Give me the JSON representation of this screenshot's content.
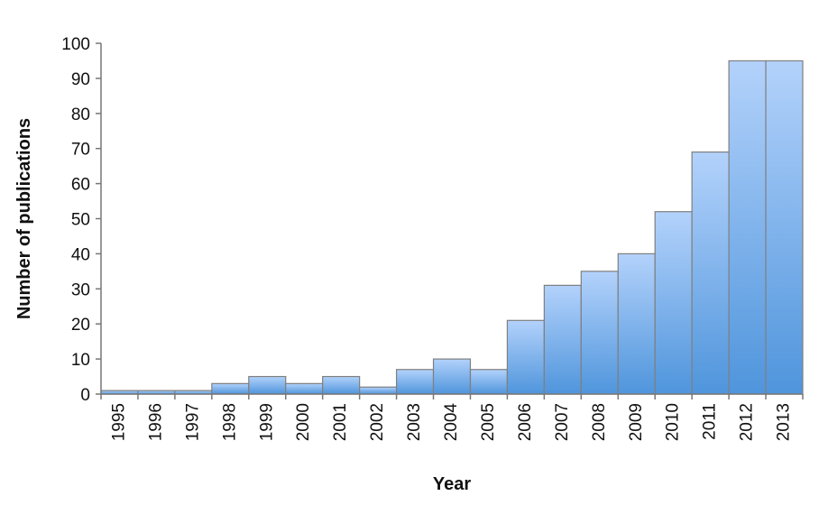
{
  "chart_data": {
    "type": "bar",
    "categories": [
      "1995",
      "1996",
      "1997",
      "1998",
      "1999",
      "2000",
      "2001",
      "2002",
      "2003",
      "2004",
      "2005",
      "2006",
      "2007",
      "2008",
      "2009",
      "2010",
      "2011",
      "2012",
      "2013"
    ],
    "values": [
      1,
      1,
      1,
      3,
      5,
      3,
      5,
      2,
      7,
      10,
      7,
      21,
      31,
      35,
      40,
      52,
      69,
      95,
      95
    ],
    "title": "",
    "xlabel": "Year",
    "ylabel": "Number of publications",
    "ylim": [
      0,
      100
    ],
    "yticks": [
      0,
      10,
      20,
      30,
      40,
      50,
      60,
      70,
      80,
      90,
      100
    ],
    "grid": false,
    "legend": "none",
    "bar_gradient": [
      "#b3d2fb",
      "#4f95dc"
    ],
    "bar_edge_color": "#7f7f7f"
  }
}
